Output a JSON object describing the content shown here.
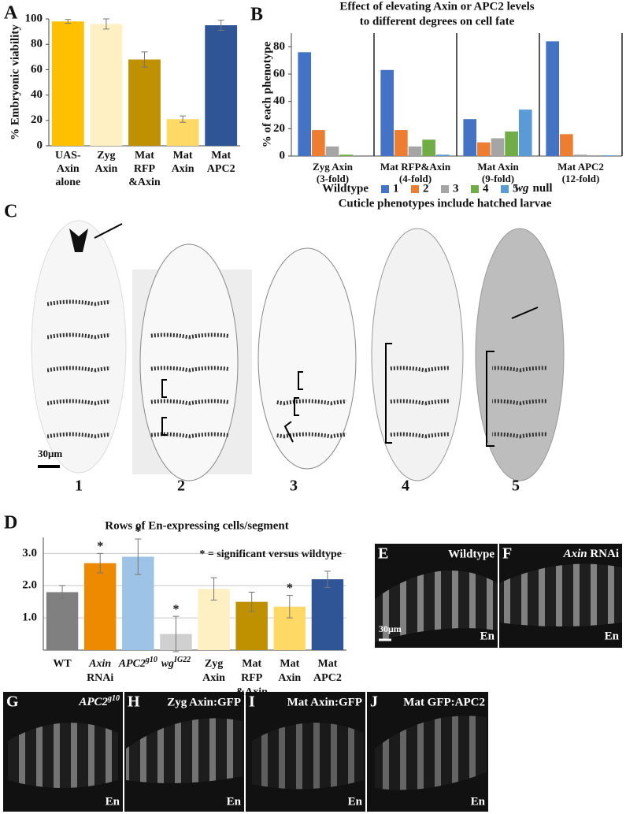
{
  "chart_data": [
    {
      "type": "bar",
      "panel": "A",
      "ylabel": "% Embryonic viability",
      "categories": [
        [
          "UAS-",
          "Axin",
          "alone"
        ],
        [
          "Zyg",
          "Axin"
        ],
        [
          "Mat",
          "RFP",
          "&Axin"
        ],
        [
          "Mat",
          "Axin"
        ],
        [
          "Mat",
          "APC2"
        ]
      ],
      "values": [
        98,
        96,
        68,
        21,
        95
      ],
      "errors": [
        1.5,
        4,
        6,
        2.5,
        4
      ],
      "colors": [
        "#ffc000",
        "#fff0c4",
        "#bf9000",
        "#ffd966",
        "#2f5597"
      ],
      "ylim": [
        0,
        100
      ],
      "yticks": [
        0,
        20,
        40,
        60,
        80,
        100
      ]
    },
    {
      "type": "grouped_bar",
      "panel": "B",
      "title": [
        "Effect of elevating Axin or APC2 levels",
        "to different degrees on cell fate"
      ],
      "ylabel": "% of each phenotype",
      "categories": [
        [
          "Zyg Axin",
          "(3-fold)"
        ],
        [
          "Mat RFP&Axin",
          "(4-fold)"
        ],
        [
          "Mat Axin",
          "(9-fold)"
        ],
        [
          "Mat APC2",
          "(12-fold)"
        ]
      ],
      "series": [
        {
          "name": "1",
          "color": "#4472c4",
          "values": [
            76,
            63,
            27,
            84
          ]
        },
        {
          "name": "2",
          "color": "#ed7d31",
          "values": [
            19,
            19,
            10,
            16
          ]
        },
        {
          "name": "3",
          "color": "#a5a5a5",
          "values": [
            7,
            7,
            13,
            1
          ]
        },
        {
          "name": "4",
          "color": "#70ad47",
          "values": [
            1,
            12,
            18,
            0
          ]
        },
        {
          "name": "5",
          "color": "#5b9bd5",
          "values": [
            0,
            1,
            34,
            0.5
          ]
        }
      ],
      "ylim": [
        0,
        90
      ],
      "yticks": [
        0,
        20,
        40,
        60,
        80
      ],
      "legend_title": "Wildtype",
      "legend_end_italic": "wg",
      "legend_end": "null",
      "note": "Cuticle phenotypes include hatched larvae"
    },
    {
      "type": "bar",
      "panel": "D",
      "title": "Rows of En-expressing cells/segment",
      "categories": [
        [
          "WT"
        ],
        [
          "Axin",
          "RNAi"
        ],
        [
          "APC2"
        ],
        [
          "wg"
        ],
        [
          "Zyg",
          "Axin"
        ],
        [
          "Mat",
          "RFP",
          "&Axin"
        ],
        [
          "Mat",
          "Axin"
        ],
        [
          "Mat",
          "APC2"
        ]
      ],
      "category_superscripts": [
        null,
        null,
        "g10",
        "IG22",
        null,
        null,
        null,
        null
      ],
      "category_italic": [
        false,
        true,
        true,
        true,
        false,
        false,
        false,
        false
      ],
      "values": [
        1.8,
        2.7,
        2.9,
        0.5,
        1.9,
        1.5,
        1.35,
        2.2
      ],
      "errors": [
        0.2,
        0.3,
        0.55,
        0.55,
        0.35,
        0.3,
        0.35,
        0.25
      ],
      "colors": [
        "#808080",
        "#ee8a00",
        "#9dc3e6",
        "#d0d0d0",
        "#fff0c4",
        "#bf9000",
        "#ffd966",
        "#2f5597"
      ],
      "significant": [
        false,
        true,
        true,
        true,
        false,
        false,
        true,
        false
      ],
      "significance_mark": "*",
      "annotation": "* = significant versus wildtype",
      "ylim": [
        0,
        3.5
      ],
      "yticks": [
        {
          "value": 1,
          "label": "1.0"
        },
        {
          "value": 2,
          "label": "2.0"
        },
        {
          "value": 3,
          "label": "3.0"
        }
      ],
      "grid": true
    }
  ],
  "panel_C": {
    "letter": "C",
    "scale": "30μm",
    "embryos": [
      "1",
      "2",
      "3",
      "4",
      "5"
    ]
  },
  "panels": [
    {
      "letter": "E",
      "label": "Wildtype",
      "stain": "En",
      "scale": "30μm"
    },
    {
      "letter": "F",
      "label_italic": "Axin",
      "label": "RNAi",
      "stain": "En"
    },
    {
      "letter": "G",
      "label_italic": "APC2",
      "label_sup": "g10",
      "stain": "En"
    },
    {
      "letter": "H",
      "label": "Zyg Axin:GFP",
      "stain": "En"
    },
    {
      "letter": "I",
      "label": "Mat Axin:GFP",
      "stain": "En"
    },
    {
      "letter": "J",
      "label": "Mat GFP:APC2",
      "stain": "En"
    }
  ]
}
